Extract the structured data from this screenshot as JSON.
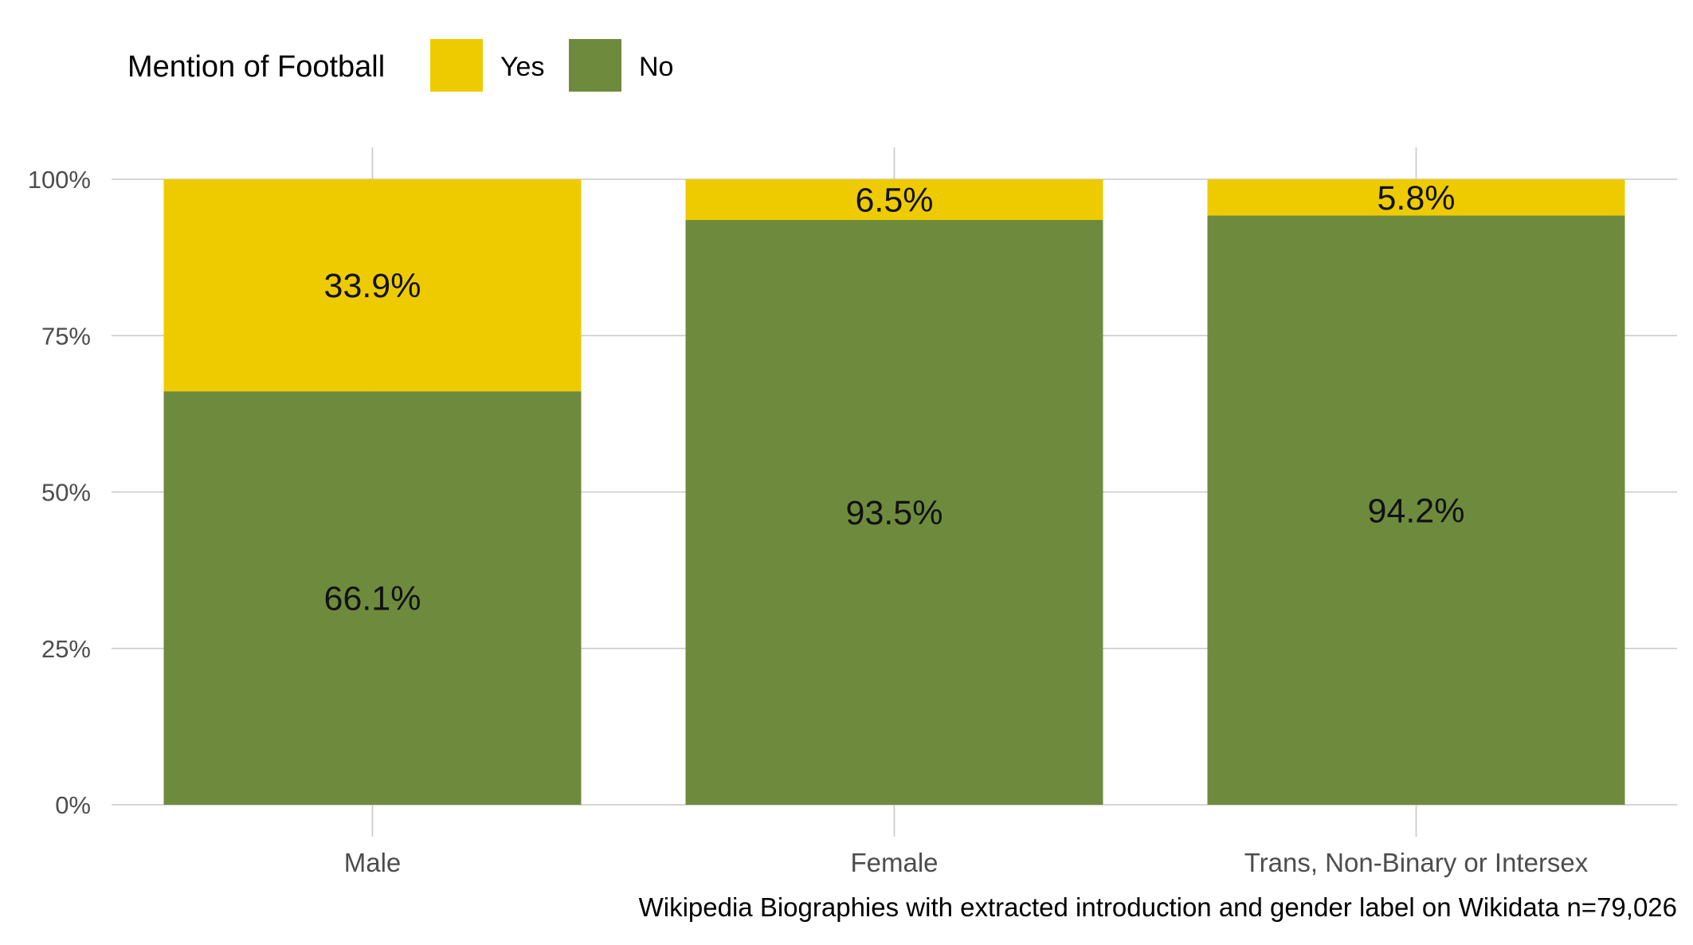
{
  "chart_data": {
    "type": "bar",
    "stacked": true,
    "percent_scale": true,
    "categories": [
      "Male",
      "Female",
      "Trans, Non-Binary or Intersex"
    ],
    "series": [
      {
        "name": "No",
        "color": "#6e8b3d",
        "values": [
          66.1,
          93.5,
          94.2
        ],
        "labels": [
          "66.1%",
          "93.5%",
          "94.2%"
        ]
      },
      {
        "name": "Yes",
        "color": "#eecb00",
        "values": [
          33.9,
          6.5,
          5.8
        ],
        "labels": [
          "33.9%",
          "6.5%",
          "5.8%"
        ]
      }
    ],
    "legend": {
      "title": "Mention of Football",
      "placement": "top-left",
      "items": [
        {
          "label": "Yes",
          "color": "#eecb00"
        },
        {
          "label": "No",
          "color": "#6e8b3d"
        }
      ]
    },
    "ylim": [
      0,
      100
    ],
    "yticks": [
      0,
      25,
      50,
      75,
      100
    ],
    "ytick_labels": [
      "0%",
      "25%",
      "50%",
      "75%",
      "100%"
    ],
    "grid": true,
    "caption": "Wikipedia Biographies with extracted introduction and gender label on Wikidata n=79,026"
  }
}
